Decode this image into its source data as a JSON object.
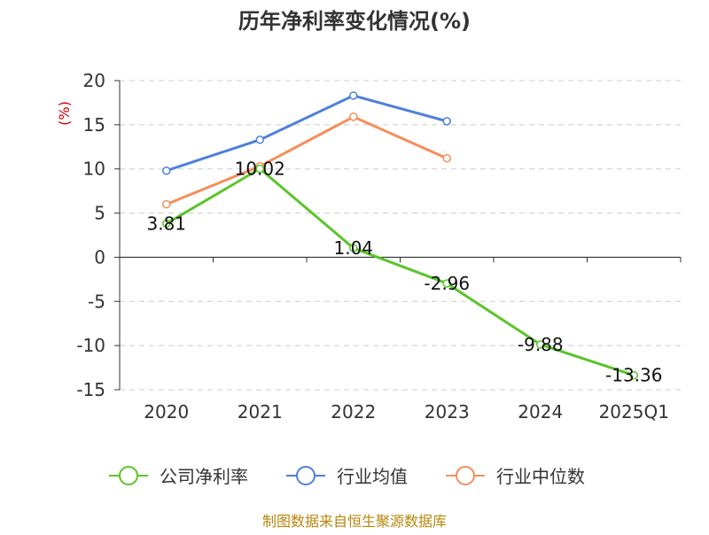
{
  "chart_data": {
    "type": "line",
    "title": "历年净利率变化情况(%)",
    "ylabel": "(%)",
    "xlabel": "",
    "categories": [
      "2020",
      "2021",
      "2022",
      "2023",
      "2024",
      "2025Q1"
    ],
    "ylim": [
      -15,
      20
    ],
    "yticks": [
      20,
      15,
      10,
      5,
      0,
      -5,
      -10,
      -15
    ],
    "grid": true,
    "legend_position": "bottom",
    "series": [
      {
        "name": "公司净利率",
        "color": "#5ac52a",
        "values": [
          3.81,
          10.02,
          1.04,
          -2.96,
          -9.88,
          -13.36
        ],
        "labels": [
          "3.81",
          "10.02",
          "1.04",
          "-2.96",
          "-9.88",
          "-13.36"
        ]
      },
      {
        "name": "行业均值",
        "color": "#4e7fdb",
        "values": [
          9.8,
          13.3,
          18.3,
          15.4,
          null,
          null
        ]
      },
      {
        "name": "行业中位数",
        "color": "#f58e5c",
        "values": [
          6.0,
          10.3,
          15.9,
          11.2,
          null,
          null
        ]
      }
    ]
  },
  "footer": {
    "source": "制图数据来自恒生聚源数据库"
  }
}
